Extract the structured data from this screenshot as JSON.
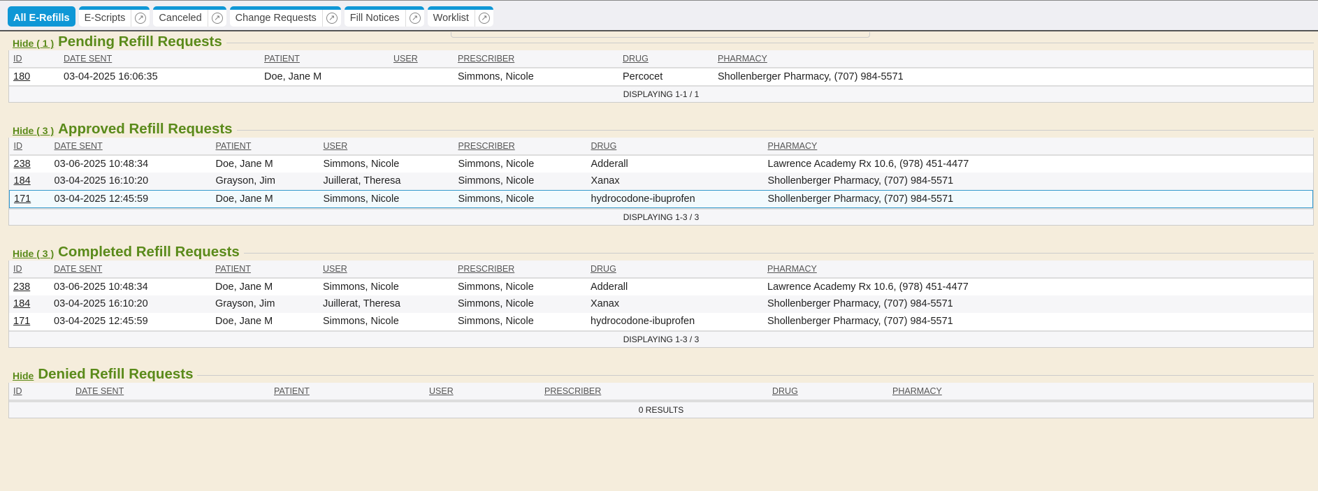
{
  "tabs": [
    {
      "label": "All E-Refills",
      "active": true
    },
    {
      "label": "E-Scripts",
      "icon": "external-link-icon"
    },
    {
      "label": "Canceled",
      "icon": "external-link-icon"
    },
    {
      "label": "Change Requests",
      "icon": "external-link-icon"
    },
    {
      "label": "Fill Notices",
      "icon": "external-link-icon"
    },
    {
      "label": "Worklist",
      "icon": "external-link-icon"
    }
  ],
  "columns": [
    "ID",
    "DATE SENT",
    "PATIENT",
    "USER",
    "PRESCRIBER",
    "DRUG",
    "PHARMACY"
  ],
  "colors": {
    "accent": "#0f97d6",
    "heading": "#5a8a1a",
    "background": "#f5eddc"
  },
  "sections": [
    {
      "name": "pending",
      "hide": "Hide ( 1 )",
      "title": "Pending Refill Requests",
      "footer": "DISPLAYING 1-1 / 1",
      "rows": [
        [
          "180",
          "03-04-2025 16:06:35",
          "Doe, Jane M",
          "",
          "Simmons, Nicole",
          "Percocet",
          "Shollenberger Pharmacy, (707) 984-5571"
        ]
      ]
    },
    {
      "name": "approved",
      "hide": "Hide ( 3 )",
      "title": "Approved Refill Requests",
      "footer": "DISPLAYING 1-3 / 3",
      "selected_row": 2,
      "rows": [
        [
          "238",
          "03-06-2025 10:48:34",
          "Doe, Jane M",
          "Simmons, Nicole",
          "Simmons, Nicole",
          "Adderall",
          "Lawrence Academy Rx 10.6, (978) 451-4477"
        ],
        [
          "184",
          "03-04-2025 16:10:20",
          "Grayson, Jim",
          "Juillerat, Theresa",
          "Simmons, Nicole",
          "Xanax",
          "Shollenberger Pharmacy, (707) 984-5571"
        ],
        [
          "171",
          "03-04-2025 12:45:59",
          "Doe, Jane M",
          "Simmons, Nicole",
          "Simmons, Nicole",
          "hydrocodone-ibuprofen",
          "Shollenberger Pharmacy, (707) 984-5571"
        ]
      ]
    },
    {
      "name": "completed",
      "hide": "Hide ( 3 )",
      "title": "Completed Refill Requests",
      "footer": "DISPLAYING 1-3 / 3",
      "rows": [
        [
          "238",
          "03-06-2025 10:48:34",
          "Doe, Jane M",
          "Simmons, Nicole",
          "Simmons, Nicole",
          "Adderall",
          "Lawrence Academy Rx 10.6, (978) 451-4477"
        ],
        [
          "184",
          "03-04-2025 16:10:20",
          "Grayson, Jim",
          "Juillerat, Theresa",
          "Simmons, Nicole",
          "Xanax",
          "Shollenberger Pharmacy, (707) 984-5571"
        ],
        [
          "171",
          "03-04-2025 12:45:59",
          "Doe, Jane M",
          "Simmons, Nicole",
          "Simmons, Nicole",
          "hydrocodone-ibuprofen",
          "Shollenberger Pharmacy, (707) 984-5571"
        ]
      ]
    },
    {
      "name": "denied",
      "hide": "Hide",
      "title": "Denied Refill Requests",
      "footer": "0 RESULTS",
      "rows": []
    }
  ]
}
